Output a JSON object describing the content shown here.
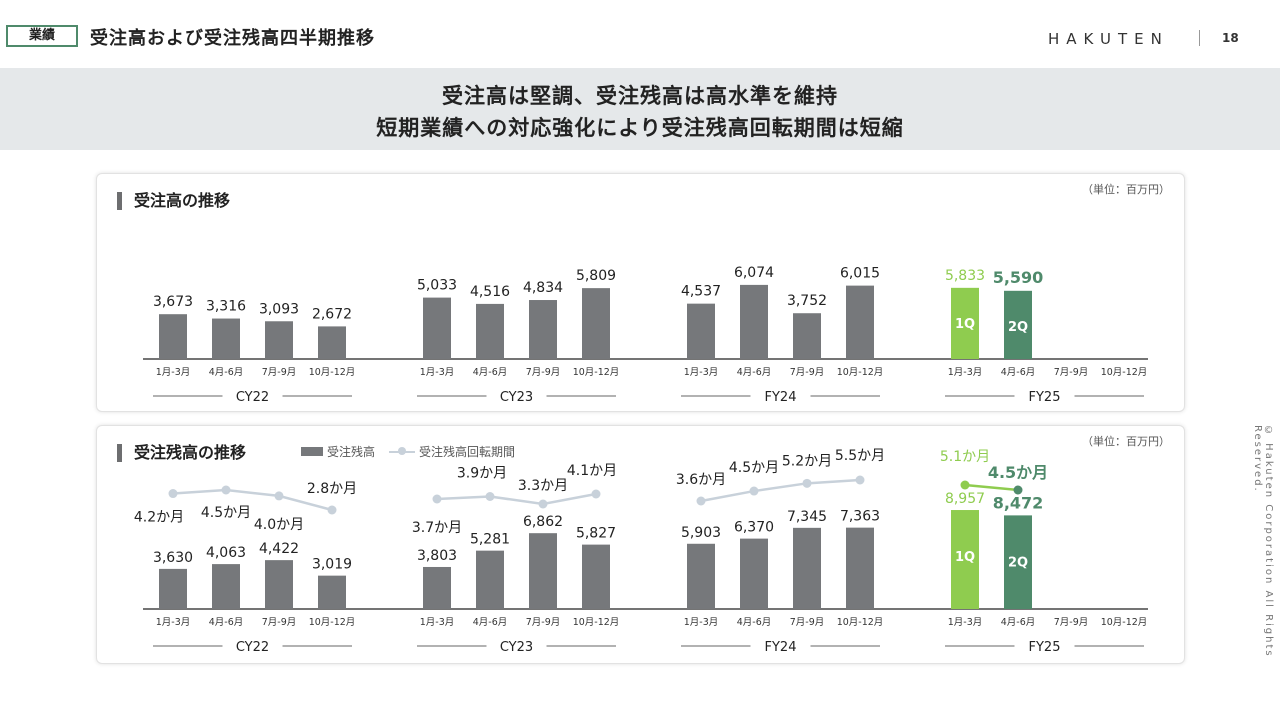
{
  "header": {
    "section_badge": "業績",
    "title": "受注高および受注残高四半期推移",
    "brand": "HAKUTEN",
    "page_number": "18"
  },
  "banner": {
    "line1": "受注高は堅調、受注残高は高水準を維持",
    "line2": "短期業績への対応強化により受注残高回転期間は短縮"
  },
  "colors": {
    "bar_gray": "#76787b",
    "fy25_1q": "#8fcc4f",
    "fy25_2q": "#4f8a6b",
    "turnover_line": "#c8d1da",
    "badge_border": "#4f8a6b"
  },
  "footer": {
    "copyright": "© Hakuten Corporation All Rights Reserved."
  },
  "chart_data": [
    {
      "type": "bar",
      "title": "受注高の推移",
      "unit": "（単位：百万円）",
      "quarter_labels": [
        "1月-3月",
        "4月-6月",
        "7月-9月",
        "10月-12月"
      ],
      "groups": [
        "CY22",
        "CY23",
        "FY24",
        "FY25"
      ],
      "bar_inner_labels": {
        "FY25": [
          "1Q",
          "2Q"
        ]
      },
      "series": [
        {
          "values": [
            [
              3673,
              3316,
              3093,
              2672
            ],
            [
              5033,
              4516,
              4834,
              5809
            ],
            [
              4537,
              6074,
              3752,
              6015
            ],
            [
              5833,
              5590,
              null,
              null
            ]
          ],
          "labels": [
            [
              "3,673",
              "3,316",
              "3,093",
              "2,672"
            ],
            [
              "5,033",
              "4,516",
              "4,834",
              "5,809"
            ],
            [
              "4,537",
              "6,074",
              "3,752",
              "6,015"
            ],
            [
              "5,833",
              "5,590",
              "",
              ""
            ]
          ]
        }
      ]
    },
    {
      "type": "bar",
      "title": "受注残高の推移",
      "unit": "（単位：百万円）",
      "legend": {
        "bar": "受注残高",
        "line": "受注残高回転期間"
      },
      "quarter_labels": [
        "1月-3月",
        "4月-6月",
        "7月-9月",
        "10月-12月"
      ],
      "groups": [
        "CY22",
        "CY23",
        "FY24",
        "FY25"
      ],
      "bar_inner_labels": {
        "FY25": [
          "1Q",
          "2Q"
        ]
      },
      "series": [
        {
          "name": "受注残高",
          "values": [
            [
              3630,
              4063,
              4422,
              3019
            ],
            [
              3803,
              5281,
              6862,
              5827
            ],
            [
              5903,
              6370,
              7345,
              7363
            ],
            [
              8957,
              8472,
              null,
              null
            ]
          ],
          "labels": [
            [
              "3,630",
              "4,063",
              "4,422",
              "3,019"
            ],
            [
              "3,803",
              "5,281",
              "6,862",
              "5,827"
            ],
            [
              "5,903",
              "6,370",
              "7,345",
              "7,363"
            ],
            [
              "8,957",
              "8,472",
              "",
              ""
            ]
          ]
        },
        {
          "name": "受注残高回転期間",
          "values": [
            [
              4.2,
              4.5,
              4.0,
              2.8
            ],
            [
              3.7,
              3.9,
              3.3,
              4.1
            ],
            [
              3.6,
              4.5,
              5.2,
              5.5
            ],
            [
              5.1,
              4.5,
              null,
              null
            ]
          ],
          "labels": [
            [
              "4.2か月",
              "4.5か月",
              "4.0か月",
              "2.8か月"
            ],
            [
              "3.7か月",
              "3.9か月",
              "3.3か月",
              "4.1か月"
            ],
            [
              "3.6か月",
              "4.5か月",
              "5.2か月",
              "5.5か月"
            ],
            [
              "5.1か月",
              "4.5か月",
              "",
              ""
            ]
          ]
        }
      ]
    }
  ]
}
